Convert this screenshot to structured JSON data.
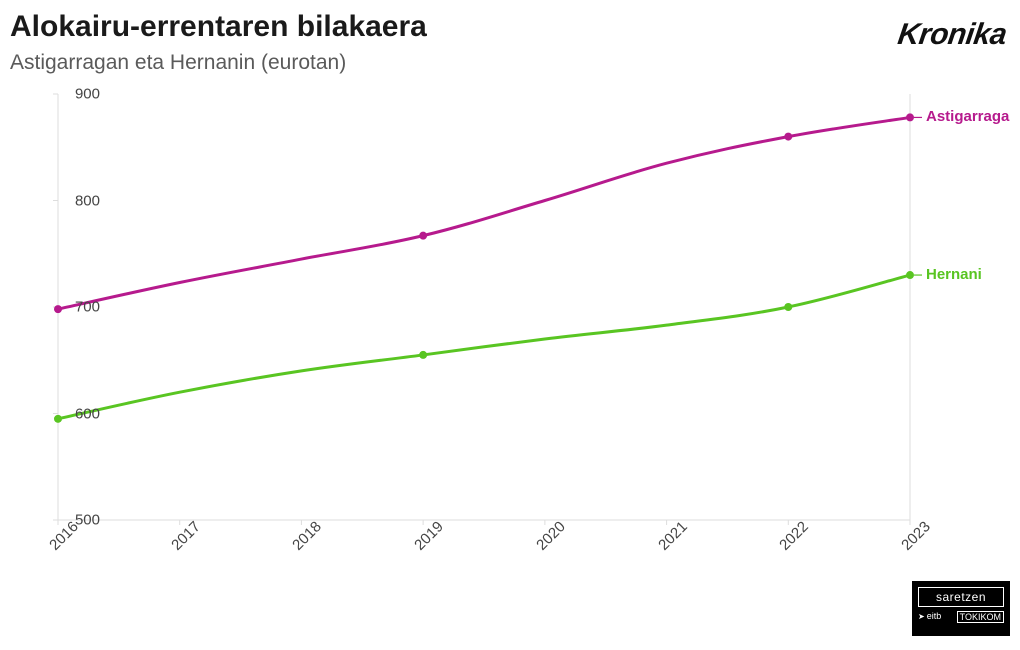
{
  "title": "Alokairu-errentaren bilakaera",
  "subtitle": "Astigarragan eta Hernanin (eurotan)",
  "brand": "Kronika",
  "title_fontsize": 30,
  "subtitle_fontsize": 21,
  "subtitle_color": "#5a5a5a",
  "background_color": "#ffffff",
  "chart": {
    "type": "line",
    "xlim": [
      2016,
      2023
    ],
    "ylim": [
      500,
      900
    ],
    "ytick_step": 100,
    "yticks": [
      500,
      600,
      700,
      800,
      900
    ],
    "xticks": [
      2016,
      2017,
      2018,
      2019,
      2020,
      2021,
      2022,
      2023
    ],
    "axis_color": "#dddddd",
    "axis_width": 1,
    "tick_font_size": 15,
    "tick_color": "#444444",
    "line_width": 3,
    "marker_radius": 4,
    "marker_years": [
      2016,
      2019,
      2022,
      2023
    ],
    "series": [
      {
        "name": "Astigarraga",
        "color": "#b61a8d",
        "label_color": "#b61a8d",
        "points": [
          {
            "x": 2016,
            "y": 698
          },
          {
            "x": 2017,
            "y": 723
          },
          {
            "x": 2018,
            "y": 745
          },
          {
            "x": 2019,
            "y": 767
          },
          {
            "x": 2020,
            "y": 800
          },
          {
            "x": 2021,
            "y": 835
          },
          {
            "x": 2022,
            "y": 860
          },
          {
            "x": 2023,
            "y": 878
          }
        ]
      },
      {
        "name": "Hernani",
        "color": "#59c522",
        "label_color": "#59c522",
        "points": [
          {
            "x": 2016,
            "y": 595
          },
          {
            "x": 2017,
            "y": 620
          },
          {
            "x": 2018,
            "y": 640
          },
          {
            "x": 2019,
            "y": 655
          },
          {
            "x": 2020,
            "y": 670
          },
          {
            "x": 2021,
            "y": 683
          },
          {
            "x": 2022,
            "y": 700
          },
          {
            "x": 2023,
            "y": 730
          }
        ]
      }
    ]
  },
  "footer": {
    "box1": "saretzen",
    "left": "eitb",
    "right": "TOKIKOM"
  }
}
